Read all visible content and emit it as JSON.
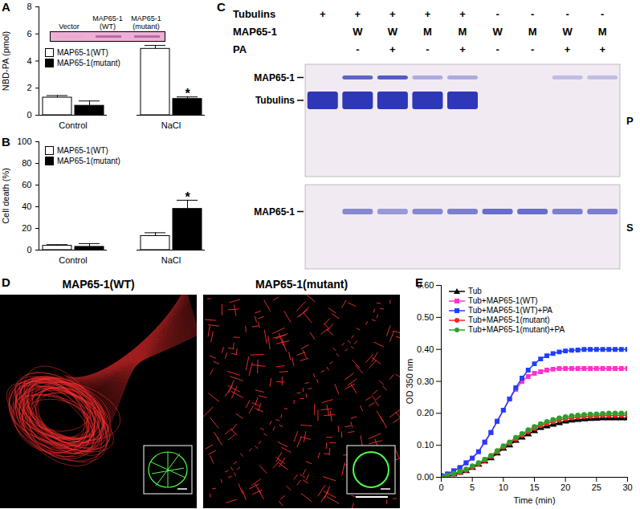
{
  "chart_data": [
    {
      "panel": "A",
      "type": "bar",
      "y_label": "NBD-PA (pmol)",
      "categories": [
        "Control",
        "NaCl"
      ],
      "series": [
        {
          "name": "MAP65-1(WT)",
          "color": "#ffffff",
          "values": [
            1.3,
            4.9
          ],
          "errors": [
            0.15,
            0.25
          ]
        },
        {
          "name": "MAP65-1(mutant)",
          "color": "#000000",
          "values": [
            0.7,
            1.2
          ],
          "errors": [
            0.35,
            0.15
          ]
        }
      ],
      "ylim": [
        0,
        8
      ],
      "yticks": [
        0,
        2,
        4,
        6,
        8
      ],
      "legend": "top-left",
      "annotations": [
        {
          "category": "NaCl",
          "series": "MAP65-1(mutant)",
          "text": "*"
        }
      ],
      "inset": {
        "lanes": [
          [
            "Vector"
          ],
          [
            "MAP65-1",
            "(WT)"
          ],
          [
            "MAP65-1",
            "(mutant)"
          ]
        ],
        "band_intensity": [
          0.05,
          0.6,
          0.6
        ]
      }
    },
    {
      "panel": "B",
      "type": "bar",
      "y_label": "Cell death (%)",
      "categories": [
        "Control",
        "NaCl"
      ],
      "series": [
        {
          "name": "MAP65-1(WT)",
          "color": "#ffffff",
          "values": [
            4,
            13
          ],
          "errors": [
            1,
            3
          ]
        },
        {
          "name": "MAP65-1(mutant)",
          "color": "#000000",
          "values": [
            3,
            38
          ],
          "errors": [
            3,
            8
          ]
        }
      ],
      "ylim": [
        0,
        100
      ],
      "yticks": [
        0,
        20,
        40,
        60,
        80,
        100
      ],
      "legend": "top-left",
      "annotations": [
        {
          "category": "NaCl",
          "series": "MAP65-1(mutant)",
          "text": "*"
        }
      ]
    },
    {
      "panel": "E",
      "type": "line",
      "x_label": "Time (min)",
      "y_label": "OD 350 nm",
      "x": [
        0,
        1,
        2,
        3,
        4,
        5,
        6,
        7,
        8,
        9,
        10,
        11,
        12,
        13,
        14,
        15,
        16,
        17,
        18,
        19,
        20,
        21,
        22,
        23,
        24,
        25,
        26,
        27,
        28,
        29,
        30
      ],
      "series": [
        {
          "name": "Tub",
          "color": "#000000",
          "marker": "triangle",
          "values": [
            0,
            0.005,
            0.01,
            0.015,
            0.02,
            0.03,
            0.04,
            0.05,
            0.06,
            0.075,
            0.09,
            0.1,
            0.115,
            0.125,
            0.135,
            0.145,
            0.155,
            0.16,
            0.165,
            0.17,
            0.175,
            0.178,
            0.18,
            0.182,
            0.183,
            0.184,
            0.185,
            0.185,
            0.185,
            0.185,
            0.185
          ]
        },
        {
          "name": "Tub+MAP65-1(WT)",
          "color": "#ff33cc",
          "marker": "square",
          "values": [
            0.005,
            0.01,
            0.02,
            0.03,
            0.045,
            0.06,
            0.08,
            0.11,
            0.14,
            0.175,
            0.21,
            0.245,
            0.275,
            0.3,
            0.315,
            0.325,
            0.33,
            0.335,
            0.338,
            0.34,
            0.34,
            0.34,
            0.34,
            0.34,
            0.34,
            0.34,
            0.34,
            0.34,
            0.34,
            0.34,
            0.34
          ]
        },
        {
          "name": "Tub+MAP65-1(WT)+PA",
          "color": "#1f3fff",
          "marker": "square",
          "values": [
            0.005,
            0.01,
            0.02,
            0.03,
            0.045,
            0.06,
            0.08,
            0.11,
            0.14,
            0.175,
            0.21,
            0.245,
            0.28,
            0.31,
            0.335,
            0.355,
            0.37,
            0.38,
            0.387,
            0.392,
            0.395,
            0.397,
            0.398,
            0.4,
            0.4,
            0.4,
            0.4,
            0.4,
            0.4,
            0.4,
            0.4
          ]
        },
        {
          "name": "Tub+MAP65-1(mutant)",
          "color": "#ff2020",
          "marker": "circle",
          "values": [
            0,
            0.005,
            0.01,
            0.015,
            0.022,
            0.032,
            0.042,
            0.053,
            0.065,
            0.08,
            0.095,
            0.107,
            0.12,
            0.132,
            0.143,
            0.153,
            0.162,
            0.168,
            0.174,
            0.179,
            0.183,
            0.186,
            0.188,
            0.19,
            0.191,
            0.192,
            0.193,
            0.193,
            0.193,
            0.194,
            0.194
          ]
        },
        {
          "name": "Tub+MAP65-1(mutant)+PA",
          "color": "#2ca02c",
          "marker": "circle",
          "values": [
            0,
            0.006,
            0.012,
            0.018,
            0.025,
            0.035,
            0.045,
            0.056,
            0.068,
            0.083,
            0.098,
            0.11,
            0.124,
            0.136,
            0.148,
            0.158,
            0.167,
            0.174,
            0.18,
            0.185,
            0.189,
            0.192,
            0.194,
            0.196,
            0.197,
            0.198,
            0.199,
            0.2,
            0.2,
            0.2,
            0.2
          ]
        }
      ],
      "xlim": [
        0,
        30
      ],
      "xticks": [
        0,
        5,
        10,
        15,
        20,
        25,
        30
      ],
      "ylim": [
        0,
        0.6
      ],
      "yticks": [
        0,
        0.1,
        0.2,
        0.3,
        0.4,
        0.5,
        0.6
      ],
      "legend": "top-left"
    }
  ],
  "gel": {
    "panel": "C",
    "rows": [
      {
        "label": "Tubulins",
        "lanes": [
          "+",
          "+",
          "+",
          "+",
          "+",
          "-",
          "-",
          "-",
          "-"
        ]
      },
      {
        "label": "MAP65-1",
        "lanes": [
          null,
          "W",
          "W",
          "M",
          "M",
          "W",
          "M",
          "W",
          "M"
        ]
      },
      {
        "label": "PA",
        "lanes": [
          null,
          "-",
          "+",
          "-",
          "+",
          "-",
          "-",
          "+",
          "+"
        ]
      }
    ],
    "pellet": {
      "label": "P",
      "bands": [
        {
          "label": "MAP65-1",
          "intensity": [
            0,
            0.75,
            0.8,
            0.35,
            0.35,
            0,
            0,
            0.25,
            0.25
          ]
        },
        {
          "label": "Tubulins",
          "intensity": [
            1,
            1,
            1,
            1,
            1,
            0,
            0,
            0,
            0
          ]
        }
      ]
    },
    "supernatant": {
      "label": "S",
      "bands": [
        {
          "label": "MAP65-1",
          "intensity": [
            0,
            0.55,
            0.45,
            0.55,
            0.6,
            0.7,
            0.7,
            0.6,
            0.6
          ]
        }
      ]
    }
  },
  "micrographs": {
    "panel": "D",
    "images": [
      {
        "label": "MAP65-1(WT)"
      },
      {
        "label": "MAP65-1(mutant)"
      }
    ]
  }
}
